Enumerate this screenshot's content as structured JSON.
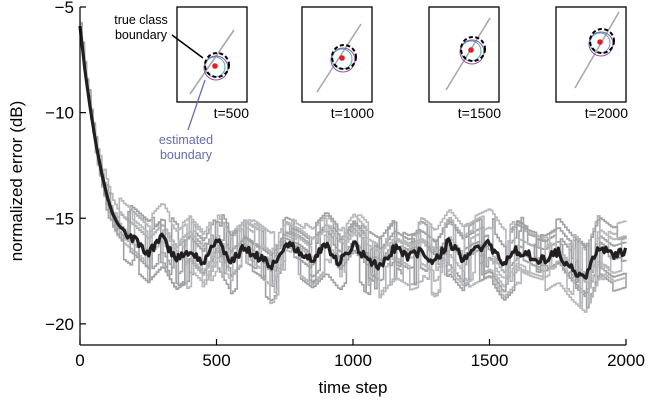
{
  "chart_data": {
    "type": "line",
    "title": "",
    "xlabel": "time step",
    "ylabel": "normalized error (dB)",
    "xlim": [
      0,
      2000
    ],
    "ylim": [
      -21,
      -5
    ],
    "xticks": [
      0,
      500,
      1000,
      1500,
      2000
    ],
    "yticks": [
      -5,
      -10,
      -15,
      -20
    ],
    "xtick_labels": [
      "0",
      "500",
      "1000",
      "1500",
      "2000"
    ],
    "ytick_labels": [
      "−5",
      "−10",
      "−15",
      "−20"
    ],
    "grid": false,
    "mean_series": {
      "color": "#231f20",
      "x": [
        0,
        20,
        40,
        60,
        80,
        100,
        120,
        140,
        160,
        180,
        200,
        250,
        300,
        350,
        400,
        450,
        500,
        550,
        600,
        650,
        700,
        750,
        800,
        850,
        900,
        950,
        1000,
        1050,
        1100,
        1150,
        1200,
        1250,
        1300,
        1350,
        1400,
        1450,
        1500,
        1550,
        1600,
        1650,
        1700,
        1750,
        1800,
        1850,
        1900,
        1950,
        2000
      ],
      "y": [
        -5.9,
        -8.2,
        -10.0,
        -11.6,
        -12.9,
        -14.0,
        -14.8,
        -15.3,
        -15.6,
        -15.8,
        -16.0,
        -16.6,
        -15.9,
        -17.0,
        -16.5,
        -17.2,
        -15.9,
        -17.1,
        -16.4,
        -16.8,
        -17.3,
        -16.2,
        -16.5,
        -17.0,
        -16.3,
        -17.1,
        -16.2,
        -16.9,
        -17.3,
        -16.4,
        -16.8,
        -16.6,
        -17.1,
        -16.1,
        -16.9,
        -16.5,
        -16.2,
        -17.2,
        -16.5,
        -16.8,
        -17.0,
        -16.6,
        -17.4,
        -18.0,
        -16.3,
        -16.8,
        -16.6
      ]
    },
    "trial_series": {
      "color": "#a7a9ac",
      "count": 10,
      "seeds": [
        3,
        7,
        11,
        19,
        23,
        29,
        31,
        37,
        41,
        43
      ]
    },
    "insets": [
      {
        "label": "t=500"
      },
      {
        "label": "t=1000"
      },
      {
        "label": "t=1500"
      },
      {
        "label": "t=2000"
      }
    ],
    "annotations": {
      "true_boundary": [
        "true class",
        "boundary"
      ],
      "estimated_boundary": [
        "estimated",
        "boundary"
      ],
      "estimated_color": "#6a6ab0",
      "true_color": "#000000"
    }
  }
}
